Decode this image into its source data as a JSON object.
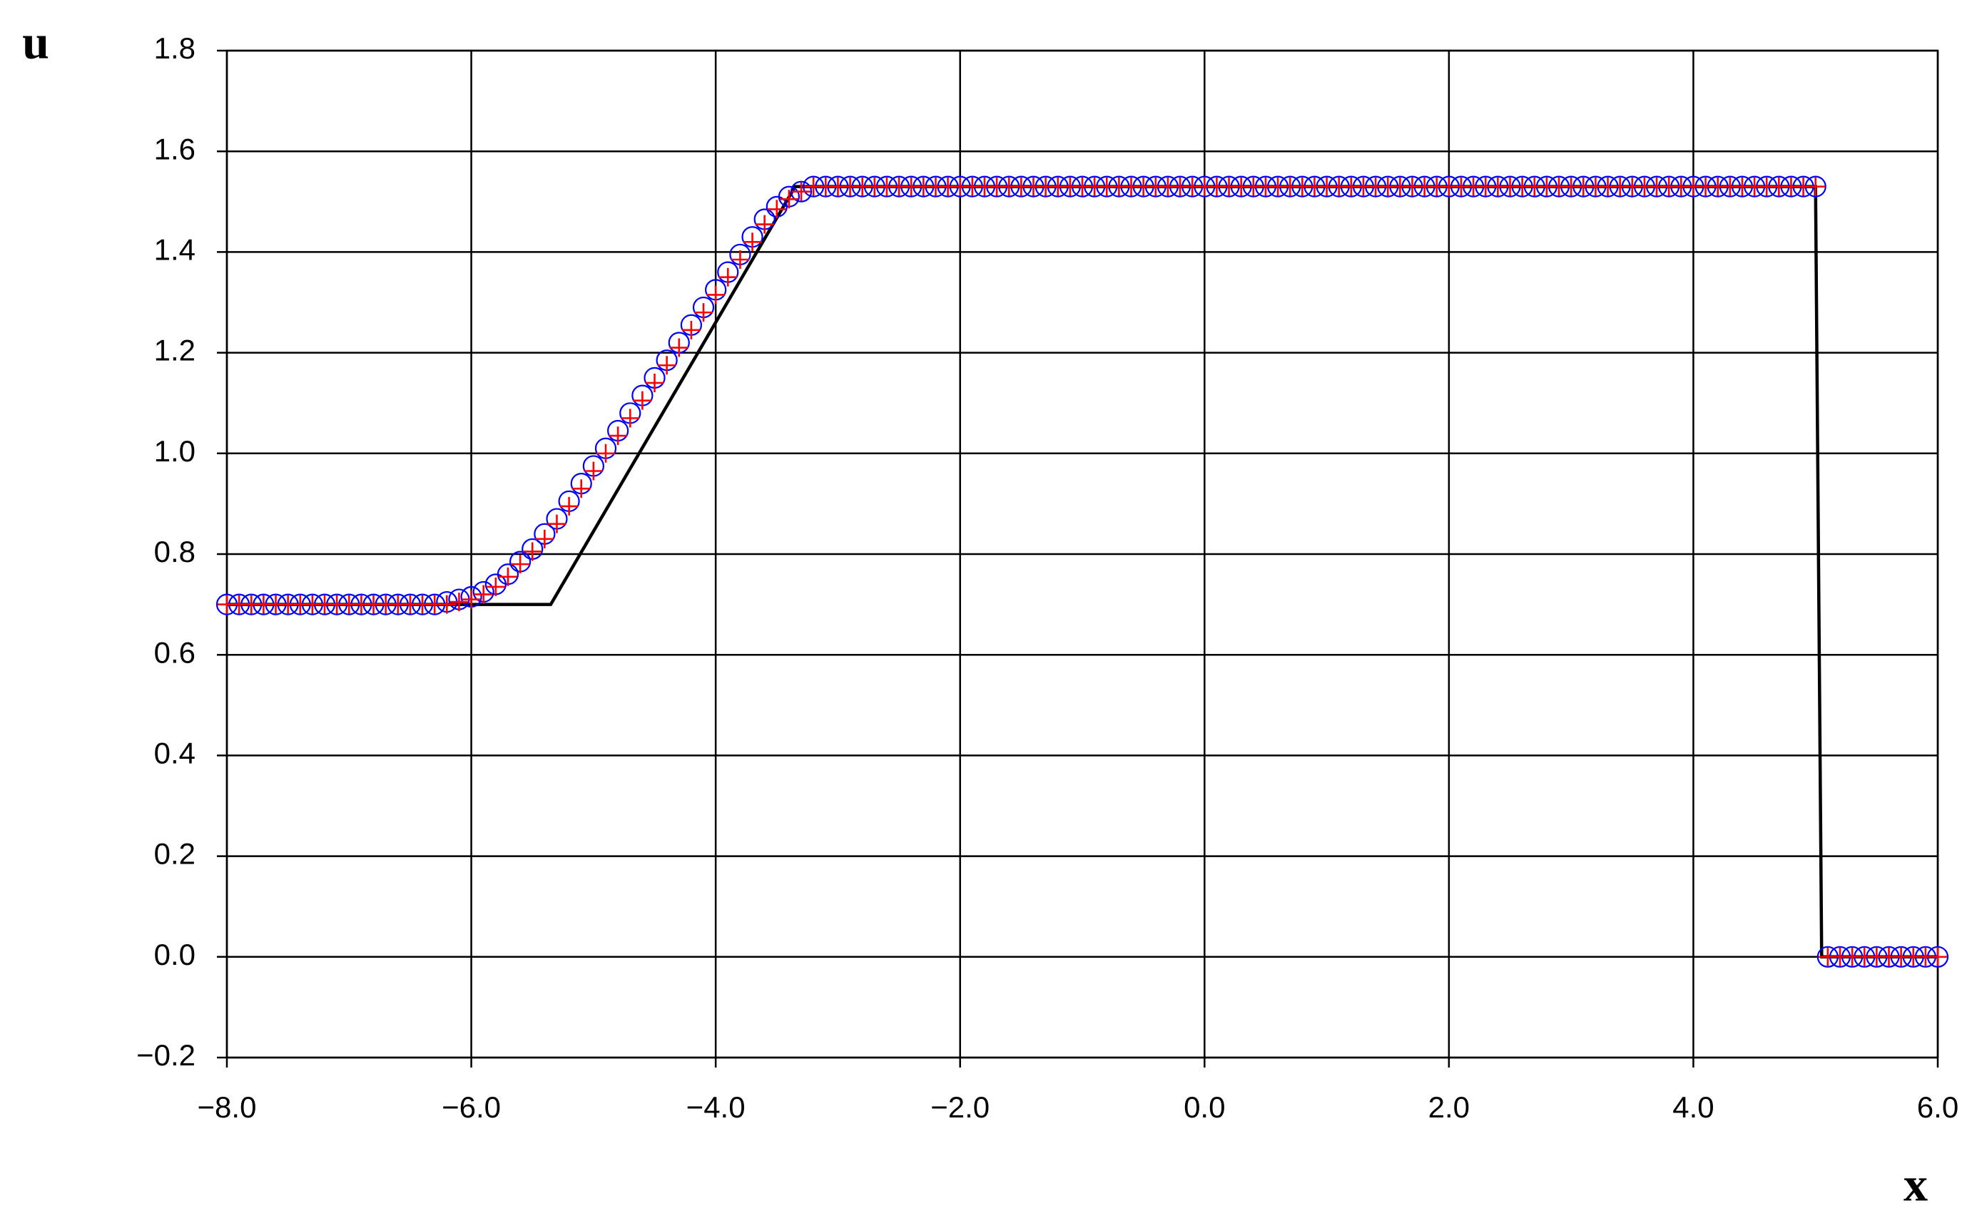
{
  "chart_data": {
    "type": "line",
    "x_label": "x",
    "y_label": "u",
    "xlim": [
      -8,
      6
    ],
    "ylim": [
      -0.2,
      1.8
    ],
    "xticks": [
      {
        "value": -8,
        "label": "−8.0"
      },
      {
        "value": -6,
        "label": "−6.0"
      },
      {
        "value": -4,
        "label": "−4.0"
      },
      {
        "value": -2,
        "label": "−2.0"
      },
      {
        "value": 0,
        "label": "0.0"
      },
      {
        "value": 2,
        "label": "2.0"
      },
      {
        "value": 4,
        "label": "4.0"
      },
      {
        "value": 6,
        "label": "6.0"
      }
    ],
    "yticks": [
      {
        "value": -0.2,
        "label": "−0.2"
      },
      {
        "value": 0,
        "label": "0.0"
      },
      0.2,
      0.4,
      0.6,
      0.8,
      {
        "value": 1,
        "label": "1.0"
      },
      1.2,
      1.4,
      1.6,
      1.8
    ],
    "grid": true,
    "x": [
      -8,
      -7.9,
      -7.8,
      -7.7,
      -7.6,
      -7.5,
      -7.4,
      -7.3,
      -7.2,
      -7.1,
      -7,
      -6.9,
      -6.8,
      -6.7,
      -6.6,
      -6.5,
      -6.4,
      -6.3,
      -6.2,
      -6.1,
      -6,
      -5.9,
      -5.8,
      -5.7,
      -5.6,
      -5.5,
      -5.4,
      -5.3,
      -5.2,
      -5.1,
      -5,
      -4.9,
      -4.8,
      -4.7,
      -4.6,
      -4.5,
      -4.4,
      -4.3,
      -4.2,
      -4.1,
      -4,
      -3.9,
      -3.8,
      -3.7,
      -3.6,
      -3.5,
      -3.4,
      -3.3,
      -3.2,
      -3.1,
      -3,
      -2.9,
      -2.8,
      -2.7,
      -2.6,
      -2.5,
      -2.4,
      -2.3,
      -2.2,
      -2.1,
      -2,
      -1.9,
      -1.8,
      -1.7,
      -1.6,
      -1.5,
      -1.4,
      -1.3,
      -1.2,
      -1.1,
      -1,
      -0.9,
      -0.8,
      -0.7,
      -0.6,
      -0.5,
      -0.4,
      -0.3,
      -0.2,
      -0.1,
      0,
      0.1,
      0.2,
      0.3,
      0.4,
      0.5,
      0.6,
      0.7,
      0.8,
      0.9,
      1,
      1.1,
      1.2,
      1.3,
      1.4,
      1.5,
      1.6,
      1.7,
      1.8,
      1.9,
      2,
      2.1,
      2.2,
      2.3,
      2.4,
      2.5,
      2.6,
      2.7,
      2.8,
      2.9,
      3,
      3.1,
      3.2,
      3.3,
      3.4,
      3.5,
      3.6,
      3.7,
      3.8,
      3.9,
      4,
      4.1,
      4.2,
      4.3,
      4.4,
      4.5,
      4.6,
      4.7,
      4.8,
      4.9,
      5,
      5.1,
      5.2,
      5.3,
      5.4,
      5.5,
      5.6,
      5.7,
      5.8,
      5.9,
      6
    ],
    "series": [
      {
        "style": "line",
        "color": "#000000",
        "x": [
          -8,
          -5.35,
          -3.35,
          5.0,
          5.05,
          6
        ],
        "values": [
          0.7,
          0.7,
          1.53,
          1.53,
          0,
          0
        ]
      },
      {
        "style": "marker",
        "marker": "circle",
        "color": "#0000ff",
        "values": [
          0.7,
          0.7,
          0.7,
          0.7,
          0.7,
          0.7,
          0.7,
          0.7,
          0.7,
          0.7,
          0.7,
          0.7,
          0.7,
          0.7,
          0.7,
          0.7,
          0.7,
          0.7,
          0.705,
          0.71,
          0.715,
          0.725,
          0.74,
          0.76,
          0.785,
          0.81,
          0.84,
          0.87,
          0.905,
          0.94,
          0.975,
          1.01,
          1.045,
          1.08,
          1.115,
          1.15,
          1.185,
          1.22,
          1.255,
          1.29,
          1.325,
          1.36,
          1.395,
          1.43,
          1.465,
          1.49,
          1.51,
          1.52,
          1.53,
          1.53,
          1.53,
          1.53,
          1.53,
          1.53,
          1.53,
          1.53,
          1.53,
          1.53,
          1.53,
          1.53,
          1.53,
          1.53,
          1.53,
          1.53,
          1.53,
          1.53,
          1.53,
          1.53,
          1.53,
          1.53,
          1.53,
          1.53,
          1.53,
          1.53,
          1.53,
          1.53,
          1.53,
          1.53,
          1.53,
          1.53,
          1.53,
          1.53,
          1.53,
          1.53,
          1.53,
          1.53,
          1.53,
          1.53,
          1.53,
          1.53,
          1.53,
          1.53,
          1.53,
          1.53,
          1.53,
          1.53,
          1.53,
          1.53,
          1.53,
          1.53,
          1.53,
          1.53,
          1.53,
          1.53,
          1.53,
          1.53,
          1.53,
          1.53,
          1.53,
          1.53,
          1.53,
          1.53,
          1.53,
          1.53,
          1.53,
          1.53,
          1.53,
          1.53,
          1.53,
          1.53,
          1.53,
          1.53,
          1.53,
          1.53,
          1.53,
          1.53,
          1.53,
          1.53,
          1.53,
          1.53,
          1.53,
          0,
          0,
          0,
          0,
          0,
          0,
          0,
          0,
          0,
          0
        ]
      },
      {
        "style": "marker",
        "marker": "cross",
        "color": "#ff0000",
        "values": [
          0.7,
          0.7,
          0.7,
          0.7,
          0.7,
          0.7,
          0.7,
          0.7,
          0.7,
          0.7,
          0.7,
          0.7,
          0.7,
          0.7,
          0.7,
          0.7,
          0.7,
          0.7,
          0.7,
          0.705,
          0.71,
          0.72,
          0.735,
          0.755,
          0.78,
          0.805,
          0.83,
          0.86,
          0.895,
          0.93,
          0.965,
          1.0,
          1.035,
          1.07,
          1.105,
          1.14,
          1.175,
          1.21,
          1.245,
          1.28,
          1.315,
          1.35,
          1.385,
          1.42,
          1.455,
          1.485,
          1.505,
          1.52,
          1.53,
          1.53,
          1.53,
          1.53,
          1.53,
          1.53,
          1.53,
          1.53,
          1.53,
          1.53,
          1.53,
          1.53,
          1.53,
          1.53,
          1.53,
          1.53,
          1.53,
          1.53,
          1.53,
          1.53,
          1.53,
          1.53,
          1.53,
          1.53,
          1.53,
          1.53,
          1.53,
          1.53,
          1.53,
          1.53,
          1.53,
          1.53,
          1.53,
          1.53,
          1.53,
          1.53,
          1.53,
          1.53,
          1.53,
          1.53,
          1.53,
          1.53,
          1.53,
          1.53,
          1.53,
          1.53,
          1.53,
          1.53,
          1.53,
          1.53,
          1.53,
          1.53,
          1.53,
          1.53,
          1.53,
          1.53,
          1.53,
          1.53,
          1.53,
          1.53,
          1.53,
          1.53,
          1.53,
          1.53,
          1.53,
          1.53,
          1.53,
          1.53,
          1.53,
          1.53,
          1.53,
          1.53,
          1.53,
          1.53,
          1.53,
          1.53,
          1.53,
          1.53,
          1.53,
          1.53,
          1.53,
          1.53,
          1.53,
          0,
          0,
          0,
          0,
          0,
          0,
          0,
          0,
          0,
          0
        ]
      }
    ]
  }
}
